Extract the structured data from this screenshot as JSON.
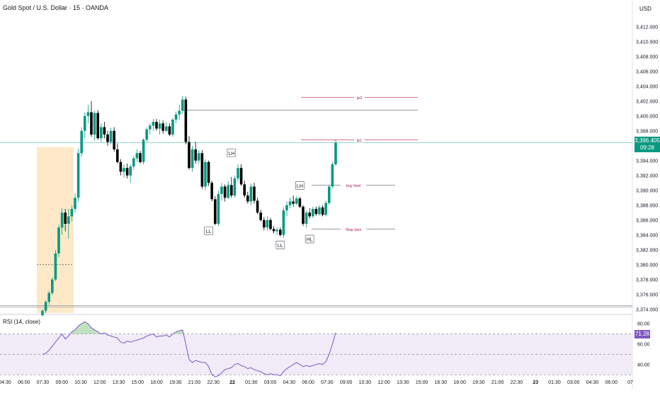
{
  "title": "Gold Spot / U.S. Dollar · 15 · OANDA",
  "currency": "USD",
  "last_price": {
    "value": "3,396.405",
    "countdown": "09:28"
  },
  "rsi_label": "RSI (14, close)",
  "rsi_value": "71.28",
  "colors": {
    "up": "#089981",
    "down": "#000000",
    "rsi": "#7e57c2",
    "zone": "#fde9c8",
    "level": "#b2163e"
  },
  "annotations": [
    "tp2",
    "tp1",
    "buy limit",
    "Stop loss"
  ],
  "swing_labels": [
    "LH",
    "LH",
    "LL",
    "LL",
    "HL"
  ],
  "chart_data": [
    {
      "type": "candlestick",
      "ylim": [
        3373.5,
        3413.5
      ],
      "yticks": [
        "3,412.000",
        "3,410.000",
        "3,408.000",
        "3,406.000",
        "3,404.000",
        "3,402.000",
        "3,400.000",
        "3,398.000",
        "3,396.000",
        "3,394.000",
        "3,392.000",
        "3,390.000",
        "3,388.000",
        "3,386.000",
        "3,384.000",
        "3,382.000",
        "3,380.000",
        "3,378.000",
        "3,376.000",
        "3,374.000"
      ],
      "xticks": [
        "04:30",
        "06:00",
        "07:30",
        "09:00",
        "10:30",
        "12:00",
        "13:30",
        "15:00",
        "18:00",
        "19:30",
        "21:00",
        "22:30",
        "22",
        "01:30",
        "03:00",
        "04:30",
        "06:00",
        "07:30",
        "09:00",
        "10:30",
        "12:00",
        "13:30",
        "15:00",
        "16:30",
        "18:00",
        "19:30",
        "21:00",
        "22:30",
        "23",
        "01:30",
        "03:00",
        "04:30",
        "06:00",
        "07"
      ],
      "ohlc": [
        [
          3373.2,
          3374.0,
          3373.0,
          3373.8
        ],
        [
          3373.8,
          3375.2,
          3373.5,
          3375.0
        ],
        [
          3375.0,
          3376.5,
          3374.6,
          3376.2
        ],
        [
          3376.2,
          3378.3,
          3375.9,
          3378.0
        ],
        [
          3378.0,
          3382.0,
          3377.8,
          3381.5
        ],
        [
          3381.5,
          3385.4,
          3381.0,
          3385.0
        ],
        [
          3385.0,
          3387.6,
          3384.0,
          3387.0
        ],
        [
          3387.0,
          3387.5,
          3384.5,
          3385.5
        ],
        [
          3385.5,
          3387.5,
          3383.5,
          3386.5
        ],
        [
          3386.5,
          3388.0,
          3385.8,
          3387.5
        ],
        [
          3387.5,
          3389.6,
          3387.0,
          3389.0
        ],
        [
          3389.0,
          3395.6,
          3388.5,
          3395.0
        ],
        [
          3395.0,
          3398.5,
          3394.5,
          3398.0
        ],
        [
          3398.0,
          3400.5,
          3397.0,
          3400.0
        ],
        [
          3400.0,
          3401.5,
          3399.0,
          3400.5
        ],
        [
          3400.5,
          3402.0,
          3397.2,
          3397.5
        ],
        [
          3397.5,
          3400.7,
          3396.7,
          3400.4
        ],
        [
          3400.4,
          3400.8,
          3396.8,
          3397.0
        ],
        [
          3397.0,
          3399.0,
          3396.5,
          3398.5
        ],
        [
          3398.5,
          3399.2,
          3397.0,
          3397.5
        ],
        [
          3397.5,
          3398.0,
          3396.0,
          3396.5
        ],
        [
          3396.5,
          3398.4,
          3396.2,
          3398.0
        ],
        [
          3398.0,
          3398.5,
          3395.2,
          3395.5
        ],
        [
          3395.5,
          3396.3,
          3393.6,
          3393.8
        ],
        [
          3393.8,
          3394.2,
          3392.0,
          3392.5
        ],
        [
          3392.5,
          3393.5,
          3391.7,
          3393.0
        ],
        [
          3393.0,
          3393.6,
          3391.6,
          3392.0
        ],
        [
          3392.0,
          3393.5,
          3391.0,
          3393.2
        ],
        [
          3393.2,
          3394.6,
          3392.8,
          3394.3
        ],
        [
          3394.3,
          3395.5,
          3393.8,
          3395.0
        ],
        [
          3395.0,
          3395.3,
          3393.6,
          3393.8
        ],
        [
          3393.8,
          3397.0,
          3393.5,
          3396.8
        ],
        [
          3396.8,
          3398.5,
          3396.5,
          3398.2
        ],
        [
          3398.2,
          3399.0,
          3397.5,
          3398.7
        ],
        [
          3398.7,
          3399.6,
          3398.0,
          3399.2
        ],
        [
          3399.2,
          3399.6,
          3398.0,
          3398.3
        ],
        [
          3398.3,
          3399.5,
          3397.5,
          3399.0
        ],
        [
          3399.0,
          3399.4,
          3397.6,
          3398.0
        ],
        [
          3398.0,
          3399.2,
          3397.8,
          3398.6
        ],
        [
          3398.6,
          3399.0,
          3397.3,
          3397.5
        ],
        [
          3397.5,
          3399.7,
          3397.2,
          3399.5
        ],
        [
          3399.5,
          3400.6,
          3399.0,
          3400.2
        ],
        [
          3400.2,
          3401.5,
          3399.5,
          3400.7
        ],
        [
          3400.7,
          3402.7,
          3400.3,
          3402.2
        ],
        [
          3402.2,
          3402.6,
          3396.2,
          3396.5
        ],
        [
          3396.5,
          3397.3,
          3392.8,
          3393.0
        ],
        [
          3393.0,
          3396.0,
          3392.5,
          3395.5
        ],
        [
          3395.5,
          3396.5,
          3393.6,
          3394.0
        ],
        [
          3394.0,
          3395.4,
          3393.6,
          3395.0
        ],
        [
          3395.0,
          3395.4,
          3390.2,
          3390.5
        ],
        [
          3390.5,
          3394.2,
          3390.0,
          3393.8
        ],
        [
          3393.8,
          3394.0,
          3390.6,
          3391.0
        ],
        [
          3391.0,
          3391.3,
          3388.5,
          3388.8
        ],
        [
          3388.8,
          3389.2,
          3385.3,
          3385.5
        ],
        [
          3385.5,
          3390.0,
          3385.2,
          3389.5
        ],
        [
          3389.5,
          3391.0,
          3388.6,
          3390.5
        ],
        [
          3390.5,
          3390.8,
          3388.5,
          3389.0
        ],
        [
          3389.0,
          3391.2,
          3388.8,
          3390.7
        ],
        [
          3390.7,
          3391.8,
          3389.0,
          3389.3
        ],
        [
          3389.3,
          3392.0,
          3389.0,
          3391.6
        ],
        [
          3391.6,
          3393.5,
          3391.2,
          3393.0
        ],
        [
          3393.0,
          3393.5,
          3390.6,
          3390.8
        ],
        [
          3390.8,
          3391.3,
          3389.0,
          3389.3
        ],
        [
          3389.3,
          3389.8,
          3388.2,
          3388.5
        ],
        [
          3388.5,
          3390.9,
          3388.0,
          3390.5
        ],
        [
          3390.5,
          3391.0,
          3388.2,
          3388.6
        ],
        [
          3388.6,
          3389.0,
          3386.8,
          3387.0
        ],
        [
          3387.0,
          3387.4,
          3385.8,
          3386.0
        ],
        [
          3386.0,
          3386.4,
          3384.6,
          3385.0
        ],
        [
          3385.0,
          3386.5,
          3384.6,
          3386.0
        ],
        [
          3386.0,
          3386.3,
          3384.6,
          3384.8
        ],
        [
          3384.8,
          3385.2,
          3384.2,
          3384.5
        ],
        [
          3384.5,
          3385.0,
          3384.0,
          3384.7
        ],
        [
          3384.7,
          3385.0,
          3383.8,
          3384.0
        ],
        [
          3384.0,
          3387.7,
          3383.6,
          3387.3
        ],
        [
          3387.3,
          3388.5,
          3386.5,
          3388.0
        ],
        [
          3388.0,
          3389.0,
          3387.6,
          3388.5
        ],
        [
          3388.5,
          3389.3,
          3387.8,
          3388.2
        ],
        [
          3388.2,
          3389.2,
          3388.0,
          3388.9
        ],
        [
          3388.9,
          3389.1,
          3387.6,
          3387.8
        ],
        [
          3387.8,
          3388.0,
          3385.2,
          3385.5
        ],
        [
          3385.5,
          3387.3,
          3385.0,
          3387.0
        ],
        [
          3387.0,
          3387.6,
          3386.2,
          3386.5
        ],
        [
          3386.5,
          3387.8,
          3386.3,
          3387.5
        ],
        [
          3387.5,
          3387.8,
          3386.6,
          3386.8
        ],
        [
          3386.8,
          3388.0,
          3386.6,
          3387.7
        ],
        [
          3387.7,
          3388.0,
          3386.5,
          3386.7
        ],
        [
          3386.7,
          3388.6,
          3386.5,
          3388.3
        ],
        [
          3388.3,
          3390.7,
          3388.0,
          3390.5
        ],
        [
          3390.5,
          3393.8,
          3390.3,
          3393.5
        ],
        [
          3393.5,
          3396.8,
          3393.3,
          3396.4
        ]
      ],
      "levels": [
        {
          "name": "tp2",
          "price": 3402.5
        },
        {
          "name": "tp1",
          "price": 3396.8
        },
        {
          "name": "buy limit",
          "price": 3390.7
        },
        {
          "name": "Stop loss",
          "price": 3384.8
        }
      ]
    },
    {
      "type": "line",
      "series": [
        {
          "values": [
            50,
            51,
            54,
            58,
            62,
            66,
            70,
            65,
            68,
            72,
            74,
            78,
            80,
            82,
            80,
            76,
            74,
            72,
            70,
            71,
            69,
            68,
            67,
            66,
            62,
            61,
            63,
            62,
            63,
            64,
            65,
            66,
            68,
            69,
            70,
            67,
            68,
            68,
            69,
            67,
            70,
            72,
            73,
            74,
            60,
            45,
            42,
            44,
            43,
            42,
            42,
            38,
            30,
            28,
            29,
            32,
            35,
            36,
            37,
            40,
            41,
            39,
            38,
            36,
            37,
            35,
            34,
            33,
            31,
            30,
            31,
            30,
            30,
            29,
            33,
            36,
            38,
            40,
            42,
            40,
            38,
            39,
            38,
            39,
            40,
            41,
            40,
            43,
            50,
            60,
            71.28
          ]
        }
      ],
      "ylim": [
        35,
        85
      ],
      "yticks": [
        "80.00",
        "60.00",
        "40.00"
      ],
      "bands": [
        70,
        50,
        30
      ]
    }
  ]
}
